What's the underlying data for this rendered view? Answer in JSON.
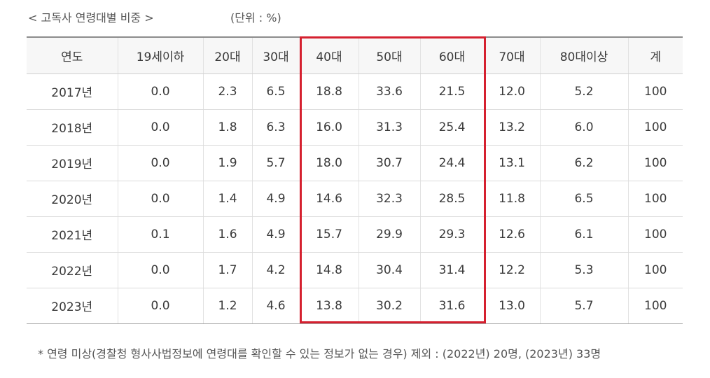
{
  "caption": {
    "title": "< 고독사 연령대별 비중 >",
    "unit": "(단위 : %)"
  },
  "table": {
    "headers": [
      "연도",
      "19세이하",
      "20대",
      "30대",
      "40대",
      "50대",
      "60대",
      "70대",
      "80대이상",
      "계"
    ],
    "rows": [
      [
        "2017년",
        "0.0",
        "2.3",
        "6.5",
        "18.8",
        "33.6",
        "21.5",
        "12.0",
        "5.2",
        "100"
      ],
      [
        "2018년",
        "0.0",
        "1.8",
        "6.3",
        "16.0",
        "31.3",
        "25.4",
        "13.2",
        "6.0",
        "100"
      ],
      [
        "2019년",
        "0.0",
        "1.9",
        "5.7",
        "18.0",
        "30.7",
        "24.4",
        "13.1",
        "6.2",
        "100"
      ],
      [
        "2020년",
        "0.0",
        "1.4",
        "4.9",
        "14.6",
        "32.3",
        "28.5",
        "11.8",
        "6.5",
        "100"
      ],
      [
        "2021년",
        "0.1",
        "1.6",
        "4.9",
        "15.7",
        "29.9",
        "29.3",
        "12.6",
        "6.1",
        "100"
      ],
      [
        "2022년",
        "0.0",
        "1.7",
        "4.2",
        "14.8",
        "30.4",
        "31.4",
        "12.2",
        "5.3",
        "100"
      ],
      [
        "2023년",
        "0.0",
        "1.2",
        "4.6",
        "13.8",
        "30.2",
        "31.6",
        "13.0",
        "5.7",
        "100"
      ]
    ],
    "highlight_color": "#d5202f"
  },
  "footnote": "* 연령 미상(경찰청 형사사법정보에 연령대를 확인할 수 있는 정보가 없는 경우) 제외 : (2022년) 20명, (2023년) 33명"
}
